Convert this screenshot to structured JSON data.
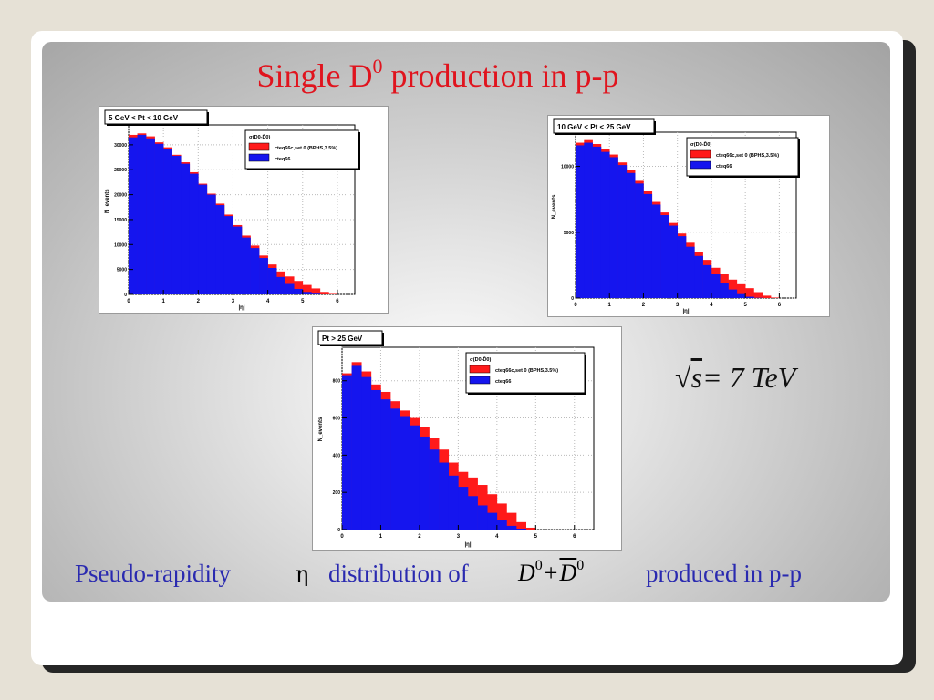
{
  "slide": {
    "title_main": "Single D",
    "title_sup": "0",
    "title_rest": " production in p-p",
    "energy_label": {
      "radical": "√",
      "variable": "s",
      "equals": "= 7 ",
      "unit": "TeV"
    },
    "caption": {
      "part1": "Pseudo-rapidity",
      "symbol": "η",
      "part2": "distribution of",
      "d_letter": "D",
      "d_sup": "0",
      "plus": "+",
      "dbar_letter": "D",
      "dbar_sup": "0",
      "part3": "produced in p-p"
    }
  },
  "colors": {
    "red_series": "#ff1a1a",
    "blue_series": "#1515ee",
    "title_red": "#e0141e",
    "caption_blue": "#2a2ab0"
  },
  "chart_data": [
    {
      "type": "area",
      "title": "5 GeV < Pt < 10 GeV",
      "xlabel": "|η|",
      "ylabel": "N_events",
      "xlim": [
        0,
        6.5
      ],
      "ylim": [
        0,
        34000
      ],
      "x_ticks": [
        "0",
        "1",
        "2",
        "3",
        "4",
        "5",
        "6"
      ],
      "y_ticks": [
        {
          "v": 0,
          "label": "0"
        },
        {
          "v": 5000,
          "label": "5000"
        },
        {
          "v": 10000,
          "label": "10000"
        },
        {
          "v": 15000,
          "label": "15000"
        },
        {
          "v": 20000,
          "label": "20000"
        },
        {
          "v": 25000,
          "label": "25000"
        },
        {
          "v": 30000,
          "label": "30000"
        }
      ],
      "legend": {
        "header": "σ(D0-D̄0)",
        "entries": [
          "cteq66c,set 0 (BPHS,3.5%)",
          "cteq66"
        ]
      },
      "x": [
        0,
        0.25,
        0.5,
        0.75,
        1,
        1.25,
        1.5,
        1.75,
        2,
        2.25,
        2.5,
        2.75,
        3,
        3.25,
        3.5,
        3.75,
        4,
        4.25,
        4.5,
        4.75,
        5,
        5.25,
        5.5,
        5.75,
        6
      ],
      "series": [
        {
          "name": "cteq66c,set 0 (BPHS,3.5%)",
          "color": "red",
          "values": [
            32000,
            32300,
            31700,
            30500,
            29500,
            28000,
            26500,
            24500,
            22200,
            20200,
            18200,
            16000,
            13900,
            11800,
            9800,
            7800,
            6000,
            4600,
            3600,
            2700,
            1900,
            1200,
            500,
            100,
            0
          ]
        },
        {
          "name": "cteq66",
          "color": "blue",
          "values": [
            31500,
            32000,
            31300,
            30200,
            29200,
            27800,
            26200,
            24200,
            22000,
            20000,
            17900,
            15700,
            13600,
            11400,
            9300,
            7300,
            5300,
            3500,
            2100,
            1100,
            500,
            150,
            0,
            0,
            0
          ]
        }
      ]
    },
    {
      "type": "area",
      "title": "10 GeV < Pt < 25 GeV",
      "xlabel": "|η|",
      "ylabel": "N_events",
      "xlim": [
        0,
        6.5
      ],
      "ylim": [
        0,
        12600
      ],
      "x_ticks": [
        "0",
        "1",
        "2",
        "3",
        "4",
        "5",
        "6"
      ],
      "y_ticks": [
        {
          "v": 0,
          "label": "0"
        },
        {
          "v": 5000,
          "label": "5000"
        },
        {
          "v": 10000,
          "label": "10000"
        }
      ],
      "legend": {
        "header": "σ(D0-D̄0)",
        "entries": [
          "cteq66c,set 0 (BPHS,3.5%)",
          "cteq66"
        ]
      },
      "x": [
        0,
        0.25,
        0.5,
        0.75,
        1,
        1.25,
        1.5,
        1.75,
        2,
        2.25,
        2.5,
        2.75,
        3,
        3.25,
        3.5,
        3.75,
        4,
        4.25,
        4.5,
        4.75,
        5,
        5.25,
        5.5,
        5.75,
        6
      ],
      "series": [
        {
          "name": "cteq66c,set 0 (BPHS,3.5%)",
          "color": "red",
          "values": [
            11800,
            12000,
            11700,
            11300,
            10900,
            10300,
            9700,
            8900,
            8100,
            7300,
            6500,
            5700,
            4900,
            4200,
            3500,
            2900,
            2300,
            1800,
            1400,
            1050,
            750,
            450,
            180,
            40,
            0
          ]
        },
        {
          "name": "cteq66",
          "color": "blue",
          "values": [
            11600,
            11800,
            11500,
            11100,
            10700,
            10100,
            9500,
            8700,
            7900,
            7100,
            6300,
            5500,
            4700,
            3900,
            3200,
            2500,
            1800,
            1150,
            650,
            300,
            100,
            20,
            0,
            0,
            0
          ]
        }
      ]
    },
    {
      "type": "area",
      "title": "Pt > 25 GeV",
      "xlabel": "|η|",
      "ylabel": "N_events",
      "xlim": [
        0,
        6.5
      ],
      "ylim": [
        0,
        980
      ],
      "x_ticks": [
        "0",
        "1",
        "2",
        "3",
        "4",
        "5",
        "6"
      ],
      "y_ticks": [
        {
          "v": 0,
          "label": "0"
        },
        {
          "v": 200,
          "label": "200"
        },
        {
          "v": 400,
          "label": "400"
        },
        {
          "v": 600,
          "label": "600"
        },
        {
          "v": 800,
          "label": "800"
        }
      ],
      "legend": {
        "header": "σ(D0-D̄0)",
        "entries": [
          "cteq66c,set 0 (BPHS,3.5%)",
          "cteq66"
        ]
      },
      "x": [
        0,
        0.25,
        0.5,
        0.75,
        1,
        1.25,
        1.5,
        1.75,
        2,
        2.25,
        2.5,
        2.75,
        3,
        3.25,
        3.5,
        3.75,
        4,
        4.25,
        4.5,
        4.75,
        5,
        5.25,
        5.5,
        5.75,
        6
      ],
      "series": [
        {
          "name": "cteq66c,set 0 (BPHS,3.5%)",
          "color": "red",
          "values": [
            840,
            900,
            850,
            780,
            740,
            690,
            640,
            600,
            550,
            490,
            430,
            360,
            310,
            280,
            240,
            190,
            140,
            90,
            40,
            10,
            0,
            0,
            0,
            0,
            0
          ]
        },
        {
          "name": "cteq66",
          "color": "blue",
          "values": [
            830,
            880,
            820,
            750,
            700,
            650,
            610,
            560,
            500,
            430,
            360,
            290,
            230,
            180,
            130,
            90,
            50,
            20,
            5,
            0,
            0,
            0,
            0,
            0,
            0
          ]
        }
      ]
    }
  ]
}
